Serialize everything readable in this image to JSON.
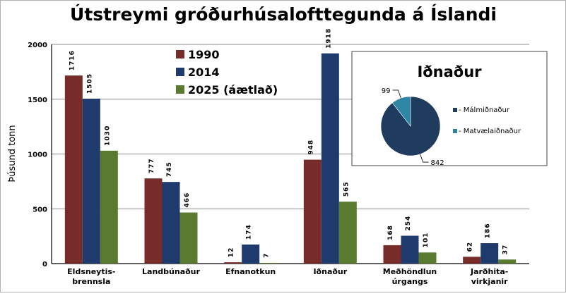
{
  "chart_data": {
    "type": "bar",
    "title": "Útstreymi gróðurhúsalofttegunda á Íslandi",
    "ylabel": "Þúsund tonn",
    "xlabel": "",
    "ylim": [
      0,
      2000
    ],
    "yticks": [
      "0",
      "500",
      "1000",
      "1500",
      "2000"
    ],
    "ytick_values": [
      0,
      500,
      1000,
      1500,
      2000
    ],
    "grid": true,
    "legend_position": "top-center",
    "categories": [
      [
        "Eldsneytis-",
        "brennsla"
      ],
      [
        "Landbúnaður"
      ],
      [
        "Efnanotkun"
      ],
      [
        "Iðnaður"
      ],
      [
        "Meðhöndlun",
        "úrgangs"
      ],
      [
        "Jarðhita-",
        "virkjanir"
      ]
    ],
    "series": [
      {
        "name": "1990",
        "color": "#772c2a",
        "values": [
          1716,
          777,
          12,
          948,
          168,
          62
        ],
        "labels": [
          "1716",
          "777",
          "12",
          "948",
          "168",
          "62"
        ]
      },
      {
        "name": "2014",
        "color": "#1f3b6e",
        "values": [
          1505,
          745,
          174,
          1918,
          254,
          186
        ],
        "labels": [
          "1505",
          "745",
          "174",
          "1918",
          "254",
          "186"
        ]
      },
      {
        "name": "2025 (áætlað)",
        "color": "#5a7a30",
        "values": [
          1030,
          466,
          7,
          565,
          101,
          37
        ],
        "labels": [
          "1030",
          "466",
          "7",
          "565",
          "101",
          "37"
        ]
      }
    ],
    "inset": {
      "type": "pie",
      "title": "Iðnaður",
      "slices": [
        {
          "name": "- Málmiðnaður",
          "value": 842,
          "label": "842",
          "color": "#1f3b5e"
        },
        {
          "name": "- Matvælaiðnaður",
          "value": 99,
          "label": "99",
          "color": "#2e86a5"
        }
      ],
      "legend_position": "right"
    }
  }
}
